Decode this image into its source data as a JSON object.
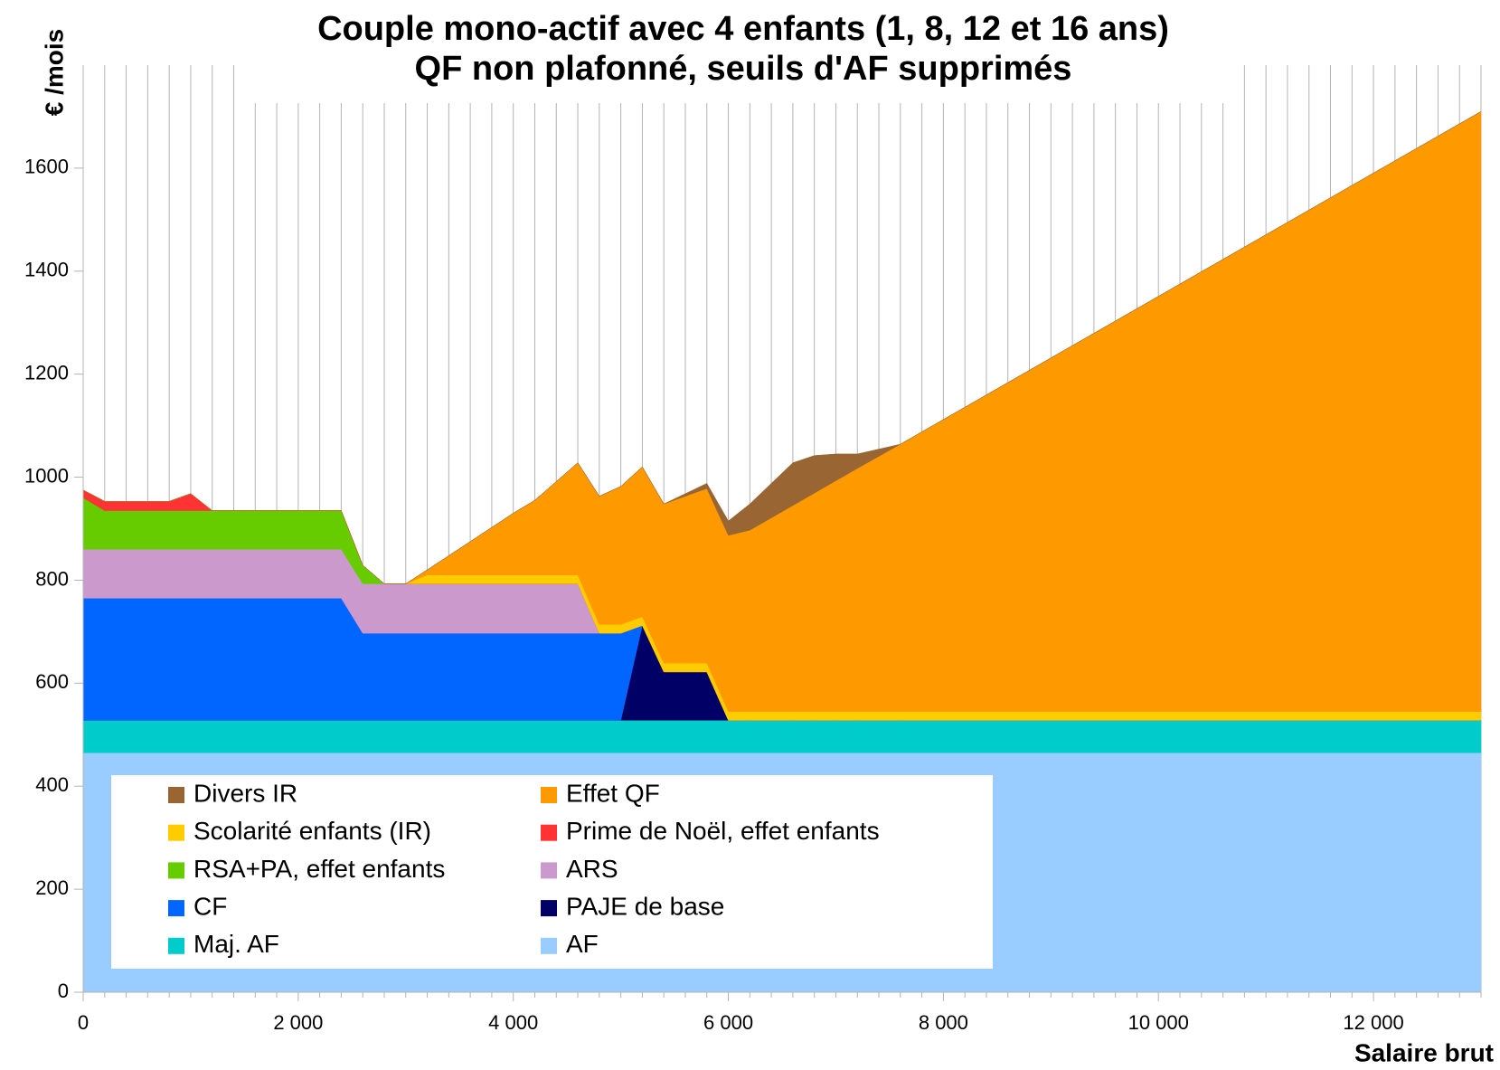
{
  "chart_data": {
    "type": "stacked_area",
    "title": "Couple mono-actif avec 4 enfants  (1, 8, 12 et 16 ans)",
    "subtitle": "QF non plafonné, seuils d'AF supprimés",
    "y_label": "€ /mois",
    "x_label": "Salaire brut",
    "x": [
      0,
      200,
      800,
      1000,
      1200,
      2400,
      2600,
      2800,
      3000,
      3200,
      4000,
      4200,
      4600,
      4800,
      5000,
      5200,
      5400,
      5800,
      6000,
      6200,
      6600,
      6800,
      7000,
      7200,
      7600,
      13000
    ],
    "xlim": [
      0,
      13000
    ],
    "ylim": [
      0,
      1800
    ],
    "xticks": [
      0,
      {
        "value": 2000,
        "label": "2 000"
      },
      {
        "value": 4000,
        "label": "4 000"
      },
      {
        "value": 6000,
        "label": "6 000"
      },
      {
        "value": 8000,
        "label": "8 000"
      },
      {
        "value": 10000,
        "label": "10 000"
      },
      {
        "value": 12000,
        "label": "12 000"
      }
    ],
    "yticks": [
      0,
      200,
      400,
      600,
      800,
      1000,
      1200,
      1400,
      1600
    ],
    "grid": "x",
    "series": [
      {
        "name": "AF",
        "color": "#99ccff",
        "values": [
          465,
          465,
          465,
          465,
          465,
          465,
          465,
          465,
          465,
          465,
          465,
          465,
          465,
          465,
          465,
          465,
          465,
          465,
          465,
          465,
          465,
          465,
          465,
          465,
          465,
          465
        ]
      },
      {
        "name": "Maj. AF",
        "color": "#00cccc",
        "values": [
          63,
          63,
          63,
          63,
          63,
          63,
          63,
          63,
          63,
          63,
          63,
          63,
          63,
          63,
          63,
          63,
          63,
          63,
          63,
          63,
          63,
          63,
          63,
          63,
          63,
          63
        ]
      },
      {
        "name": "PAJE de base",
        "color": "#000066",
        "values": [
          0,
          0,
          0,
          0,
          0,
          0,
          0,
          0,
          0,
          0,
          0,
          0,
          0,
          0,
          0,
          184,
          94,
          94,
          0,
          0,
          0,
          0,
          0,
          0,
          0,
          0
        ]
      },
      {
        "name": "CF",
        "color": "#0066ff",
        "values": [
          237,
          237,
          237,
          237,
          237,
          237,
          169,
          169,
          169,
          169,
          169,
          169,
          169,
          169,
          169,
          0,
          0,
          0,
          0,
          0,
          0,
          0,
          0,
          0,
          0,
          0
        ]
      },
      {
        "name": "ARS",
        "color": "#cc99cc",
        "values": [
          95,
          95,
          95,
          95,
          95,
          95,
          96,
          96,
          96,
          96,
          96,
          96,
          96,
          0,
          0,
          0,
          0,
          0,
          0,
          0,
          0,
          0,
          0,
          0,
          0,
          0
        ]
      },
      {
        "name": "RSA+PA, effet enfants",
        "color": "#66cc00",
        "values": [
          100,
          75,
          75,
          75,
          75,
          75,
          36,
          0,
          0,
          0,
          0,
          0,
          0,
          0,
          0,
          0,
          0,
          0,
          0,
          0,
          0,
          0,
          0,
          0,
          0,
          0
        ]
      },
      {
        "name": "Prime de Noël, effet enfants",
        "color": "#ff3333",
        "values": [
          15,
          18,
          18,
          33,
          0,
          0,
          0,
          0,
          0,
          0,
          0,
          0,
          0,
          0,
          0,
          0,
          0,
          0,
          0,
          0,
          0,
          0,
          0,
          0,
          0,
          0
        ]
      },
      {
        "name": "Scolarité enfants (IR)",
        "color": "#ffcc00",
        "values": [
          0,
          0,
          0,
          0,
          0,
          0,
          0,
          0,
          0,
          17,
          17,
          17,
          17,
          17,
          17,
          17,
          17,
          17,
          17,
          17,
          17,
          17,
          17,
          17,
          17,
          17
        ]
      },
      {
        "name": "Effet QF",
        "color": "#ff9900",
        "values": [
          0,
          0,
          0,
          0,
          0,
          0,
          0,
          0,
          0,
          10,
          120,
          145,
          218,
          249,
          268,
          291,
          309,
          339,
          342,
          352,
          400,
          424,
          448,
          472,
          519,
          1165
        ]
      },
      {
        "name": "Divers IR",
        "color": "#996633",
        "values": [
          0,
          0,
          0,
          0,
          0,
          0,
          0,
          0,
          0,
          0,
          0,
          0,
          0,
          0,
          0,
          0,
          0,
          10,
          28,
          51,
          83,
          73,
          52,
          28,
          0,
          0
        ]
      }
    ]
  }
}
